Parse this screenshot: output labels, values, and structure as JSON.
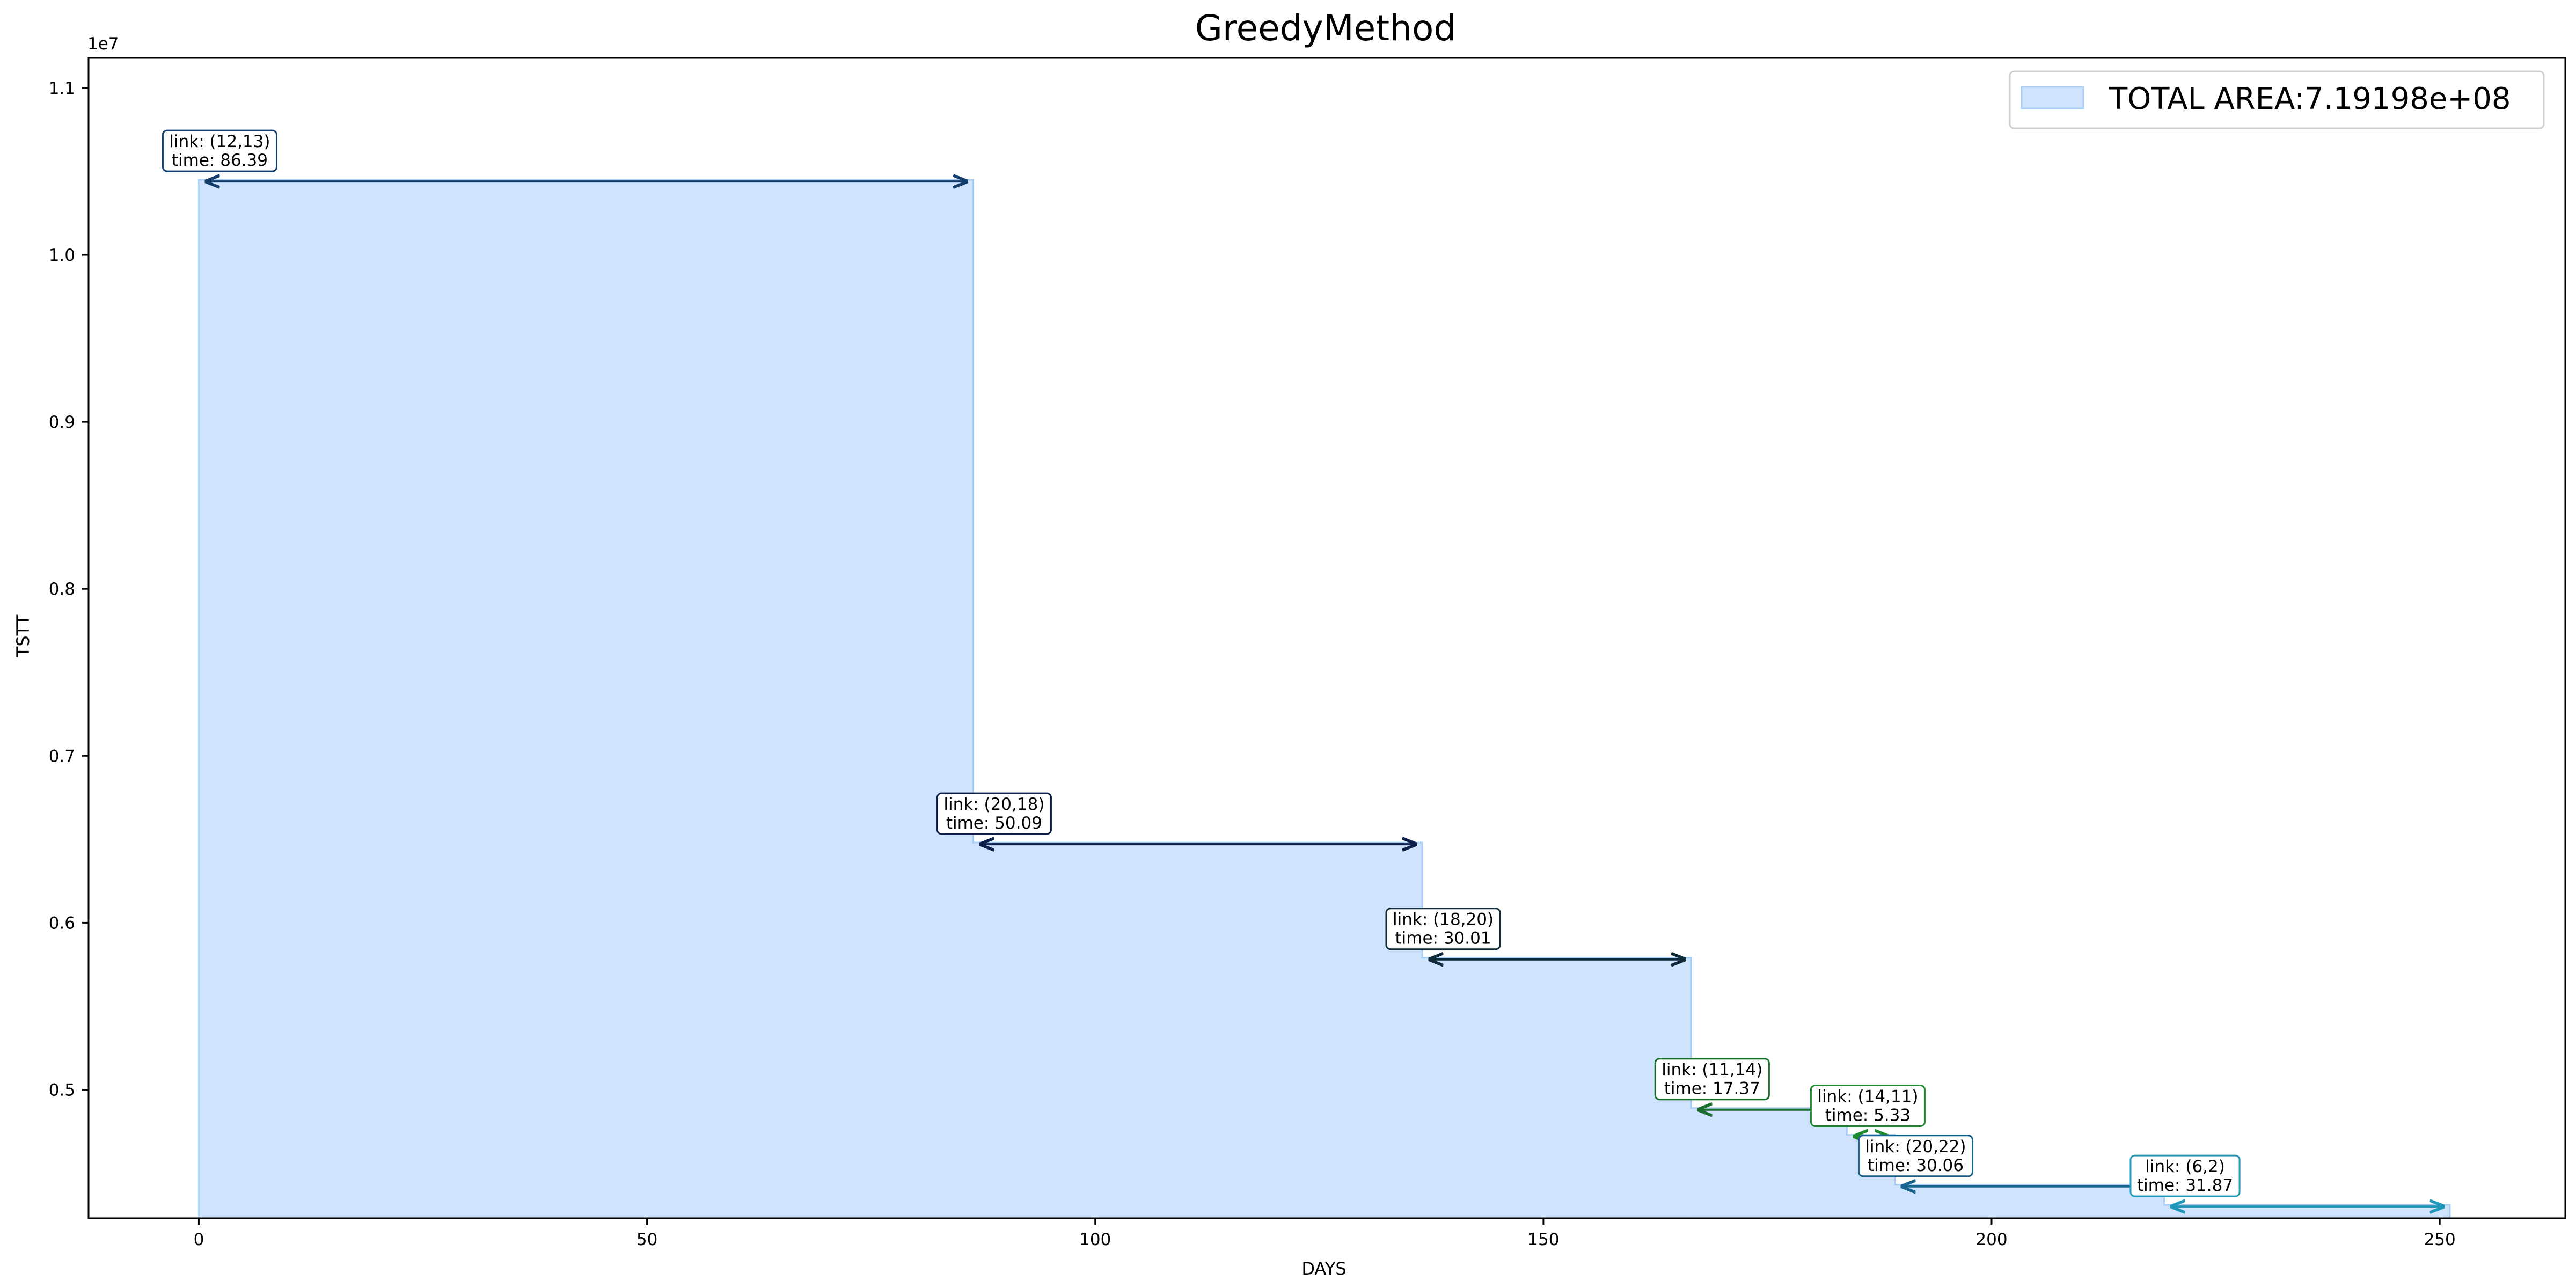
{
  "chart_data": {
    "type": "area",
    "title": "GreedyMethod",
    "xlabel": "DAYS",
    "ylabel": "TSTT",
    "y_offset_label": "1e7",
    "xlim": [
      -12.3,
      264.0
    ],
    "ylim": [
      4.23,
      11.18
    ],
    "x_ticks": [
      0,
      50,
      100,
      150,
      200,
      250
    ],
    "x_tick_labels": [
      "0",
      "50",
      "100",
      "150",
      "200",
      "250"
    ],
    "y_ticks": [
      0.5,
      0.6,
      0.7,
      0.8,
      0.9,
      1.0,
      1.1
    ],
    "y_tick_labels": [
      "0.5",
      "0.6",
      "0.7",
      "0.8",
      "0.9",
      "1.0",
      "1.1"
    ],
    "y_tick_scale": 10,
    "grid": false,
    "fill_color": "#cfe3fd",
    "edge_color": "#a8cef5",
    "legend": {
      "position": "top-right",
      "entries": [
        {
          "label": "TOTAL AREA:7.19198e+08"
        }
      ]
    },
    "steps": [
      {
        "link": "link: (12,13)",
        "time": "time: 86.39",
        "x_start": 0.0,
        "x_end": 86.39,
        "y": 10.45,
        "color": "#143d6b"
      },
      {
        "link": "link: (20,18)",
        "time": "time: 50.09",
        "x_start": 86.39,
        "x_end": 136.48,
        "y": 6.48,
        "color": "#0e1e4a"
      },
      {
        "link": "link: (18,20)",
        "time": "time: 30.01",
        "x_start": 136.48,
        "x_end": 166.49,
        "y": 5.79,
        "color": "#0f2a38"
      },
      {
        "link": "link: (11,14)",
        "time": "time: 17.37",
        "x_start": 166.49,
        "x_end": 183.86,
        "y": 4.89,
        "color": "#1a6e2e"
      },
      {
        "link": "link: (14,11)",
        "time": "time: 5.33",
        "x_start": 183.86,
        "x_end": 189.19,
        "y": 4.73,
        "color": "#1e8a2e"
      },
      {
        "link": "link: (20,22)",
        "time": "time: 30.06",
        "x_start": 189.19,
        "x_end": 219.25,
        "y": 4.43,
        "color": "#17628c"
      },
      {
        "link": "link: (6,2)",
        "time": "time: 31.87",
        "x_start": 219.25,
        "x_end": 251.12,
        "y": 4.31,
        "color": "#1f97b8"
      }
    ]
  }
}
